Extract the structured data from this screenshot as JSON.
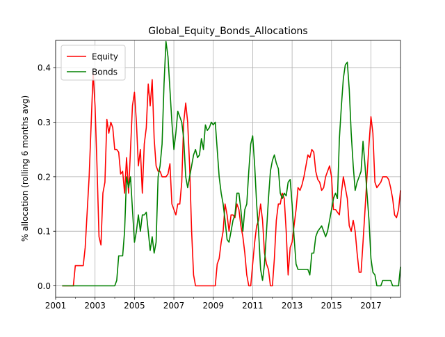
{
  "chart_data": {
    "type": "line",
    "title": "Global_Equity_Bonds_Allocations",
    "xlabel": "",
    "ylabel": "% allocation (rolling 6 months avg)",
    "xlim": [
      2001.0,
      2018.5
    ],
    "ylim": [
      -0.021,
      0.45
    ],
    "xticks": [
      2001,
      2003,
      2005,
      2007,
      2009,
      2011,
      2013,
      2015,
      2017
    ],
    "xtick_labels": [
      "2001",
      "2003",
      "2005",
      "2007",
      "2009",
      "2011",
      "2013",
      "2015",
      "2017"
    ],
    "yticks": [
      0.0,
      0.1,
      0.2,
      0.3,
      0.4
    ],
    "ytick_labels": [
      "0.0",
      "0.1",
      "0.2",
      "0.3",
      "0.4"
    ],
    "grid": true,
    "legend_position": "upper-left",
    "series": [
      {
        "name": "Equity",
        "color": "#ff0000",
        "x": [
          2001.33,
          2001.9,
          2002.0,
          2002.3,
          2002.4,
          2002.5,
          2002.7,
          2002.9,
          2003.0,
          2003.1,
          2003.2,
          2003.3,
          2003.4,
          2003.5,
          2003.6,
          2003.7,
          2003.8,
          2003.9,
          2004.0,
          2004.1,
          2004.2,
          2004.3,
          2004.4,
          2004.5,
          2004.6,
          2004.7,
          2004.8,
          2004.9,
          2005.0,
          2005.1,
          2005.2,
          2005.3,
          2005.4,
          2005.5,
          2005.6,
          2005.7,
          2005.8,
          2005.9,
          2006.0,
          2006.1,
          2006.2,
          2006.3,
          2006.4,
          2006.5,
          2006.6,
          2006.7,
          2006.8,
          2006.9,
          2007.0,
          2007.1,
          2007.2,
          2007.3,
          2007.4,
          2007.5,
          2007.6,
          2007.7,
          2007.8,
          2007.9,
          2008.0,
          2008.1,
          2008.2,
          2008.3,
          2008.5,
          2008.8,
          2009.1,
          2009.2,
          2009.3,
          2009.4,
          2009.5,
          2009.6,
          2009.7,
          2009.8,
          2009.9,
          2010.0,
          2010.1,
          2010.2,
          2010.3,
          2010.4,
          2010.5,
          2010.6,
          2010.7,
          2010.8,
          2010.9,
          2011.0,
          2011.1,
          2011.2,
          2011.3,
          2011.4,
          2011.5,
          2011.6,
          2011.7,
          2011.8,
          2011.9,
          2012.0,
          2012.1,
          2012.2,
          2012.3,
          2012.4,
          2012.5,
          2012.6,
          2012.7,
          2012.8,
          2012.9,
          2013.0,
          2013.1,
          2013.2,
          2013.3,
          2013.4,
          2013.5,
          2013.6,
          2013.7,
          2013.8,
          2013.9,
          2014.0,
          2014.1,
          2014.2,
          2014.3,
          2014.4,
          2014.5,
          2014.6,
          2014.7,
          2014.8,
          2014.9,
          2015.0,
          2015.1,
          2015.2,
          2015.3,
          2015.4,
          2015.5,
          2015.6,
          2015.7,
          2015.8,
          2015.9,
          2016.0,
          2016.1,
          2016.2,
          2016.3,
          2016.4,
          2016.5,
          2016.6,
          2016.7,
          2016.8,
          2016.9,
          2017.0,
          2017.1,
          2017.2,
          2017.3,
          2017.4,
          2017.5,
          2017.6,
          2017.7,
          2017.8,
          2017.9,
          2018.0,
          2018.1,
          2018.2,
          2018.3,
          2018.4,
          2018.5
        ],
        "y": [
          0.0,
          0.0,
          0.037,
          0.037,
          0.037,
          0.07,
          0.2,
          0.39,
          0.33,
          0.22,
          0.09,
          0.075,
          0.17,
          0.19,
          0.305,
          0.28,
          0.3,
          0.29,
          0.25,
          0.25,
          0.245,
          0.205,
          0.21,
          0.17,
          0.235,
          0.17,
          0.25,
          0.33,
          0.355,
          0.3,
          0.22,
          0.25,
          0.17,
          0.26,
          0.29,
          0.37,
          0.33,
          0.378,
          0.27,
          0.22,
          0.21,
          0.21,
          0.2,
          0.2,
          0.2,
          0.205,
          0.224,
          0.15,
          0.14,
          0.13,
          0.15,
          0.15,
          0.19,
          0.3,
          0.335,
          0.3,
          0.22,
          0.1,
          0.02,
          0.0,
          0.0,
          0.0,
          0.0,
          0.0,
          0.0,
          0.04,
          0.05,
          0.08,
          0.1,
          0.15,
          0.13,
          0.1,
          0.13,
          0.13,
          0.125,
          0.15,
          0.14,
          0.11,
          0.09,
          0.06,
          0.02,
          0.0,
          0.0,
          0.04,
          0.08,
          0.11,
          0.12,
          0.15,
          0.12,
          0.06,
          0.04,
          0.03,
          0.0,
          0.0,
          0.05,
          0.12,
          0.15,
          0.15,
          0.17,
          0.16,
          0.1,
          0.02,
          0.07,
          0.08,
          0.11,
          0.14,
          0.18,
          0.175,
          0.185,
          0.2,
          0.22,
          0.24,
          0.235,
          0.25,
          0.245,
          0.21,
          0.195,
          0.19,
          0.175,
          0.18,
          0.2,
          0.21,
          0.22,
          0.2,
          0.14,
          0.14,
          0.135,
          0.13,
          0.17,
          0.2,
          0.18,
          0.16,
          0.11,
          0.1,
          0.12,
          0.1,
          0.06,
          0.025,
          0.025,
          0.08,
          0.14,
          0.2,
          0.26,
          0.31,
          0.28,
          0.19,
          0.18,
          0.185,
          0.19,
          0.2,
          0.2,
          0.2,
          0.195,
          0.18,
          0.16,
          0.13,
          0.125,
          0.14,
          0.175
        ]
      },
      {
        "name": "Bonds",
        "color": "#008000",
        "x": [
          2001.33,
          2004.0,
          2004.1,
          2004.2,
          2004.3,
          2004.4,
          2004.5,
          2004.6,
          2004.7,
          2004.8,
          2004.9,
          2005.0,
          2005.1,
          2005.2,
          2005.3,
          2005.4,
          2005.5,
          2005.6,
          2005.7,
          2005.8,
          2005.9,
          2006.0,
          2006.1,
          2006.2,
          2006.3,
          2006.4,
          2006.5,
          2006.6,
          2006.7,
          2006.8,
          2006.9,
          2007.0,
          2007.1,
          2007.2,
          2007.3,
          2007.4,
          2007.5,
          2007.6,
          2007.7,
          2007.8,
          2007.9,
          2008.0,
          2008.1,
          2008.2,
          2008.3,
          2008.4,
          2008.5,
          2008.6,
          2008.7,
          2008.8,
          2008.9,
          2009.0,
          2009.1,
          2009.2,
          2009.3,
          2009.4,
          2009.5,
          2009.6,
          2009.7,
          2009.8,
          2009.9,
          2010.0,
          2010.1,
          2010.2,
          2010.3,
          2010.4,
          2010.5,
          2010.6,
          2010.7,
          2010.8,
          2010.9,
          2011.0,
          2011.1,
          2011.2,
          2011.3,
          2011.4,
          2011.5,
          2011.6,
          2011.7,
          2011.8,
          2011.9,
          2012.0,
          2012.1,
          2012.2,
          2012.3,
          2012.4,
          2012.5,
          2012.6,
          2012.7,
          2012.8,
          2012.9,
          2013.0,
          2013.1,
          2013.2,
          2013.3,
          2013.4,
          2013.5,
          2013.6,
          2013.7,
          2013.8,
          2013.9,
          2014.0,
          2014.1,
          2014.2,
          2014.3,
          2014.4,
          2014.5,
          2014.6,
          2014.7,
          2014.8,
          2014.9,
          2015.0,
          2015.1,
          2015.2,
          2015.3,
          2015.4,
          2015.5,
          2015.6,
          2015.7,
          2015.8,
          2015.9,
          2016.0,
          2016.1,
          2016.2,
          2016.3,
          2016.4,
          2016.5,
          2016.6,
          2016.7,
          2016.8,
          2016.9,
          2017.0,
          2017.1,
          2017.2,
          2017.3,
          2017.4,
          2017.5,
          2017.6,
          2017.7,
          2017.8,
          2017.9,
          2018.0,
          2018.1,
          2018.2,
          2018.3,
          2018.4,
          2018.5
        ],
        "y": [
          0.0,
          0.0,
          0.01,
          0.055,
          0.055,
          0.055,
          0.1,
          0.2,
          0.18,
          0.2,
          0.14,
          0.08,
          0.1,
          0.13,
          0.1,
          0.13,
          0.13,
          0.135,
          0.1,
          0.065,
          0.09,
          0.06,
          0.08,
          0.2,
          0.22,
          0.26,
          0.37,
          0.448,
          0.42,
          0.36,
          0.3,
          0.25,
          0.28,
          0.32,
          0.31,
          0.3,
          0.27,
          0.2,
          0.18,
          0.2,
          0.22,
          0.24,
          0.25,
          0.235,
          0.24,
          0.27,
          0.25,
          0.295,
          0.285,
          0.29,
          0.3,
          0.295,
          0.3,
          0.25,
          0.2,
          0.17,
          0.15,
          0.12,
          0.085,
          0.08,
          0.1,
          0.12,
          0.13,
          0.17,
          0.17,
          0.14,
          0.1,
          0.14,
          0.15,
          0.21,
          0.26,
          0.275,
          0.22,
          0.15,
          0.1,
          0.03,
          0.01,
          0.04,
          0.1,
          0.16,
          0.21,
          0.23,
          0.24,
          0.225,
          0.215,
          0.17,
          0.16,
          0.17,
          0.165,
          0.19,
          0.195,
          0.15,
          0.09,
          0.04,
          0.03,
          0.03,
          0.03,
          0.03,
          0.03,
          0.03,
          0.02,
          0.06,
          0.06,
          0.09,
          0.1,
          0.105,
          0.11,
          0.1,
          0.09,
          0.1,
          0.12,
          0.14,
          0.16,
          0.17,
          0.16,
          0.27,
          0.33,
          0.38,
          0.405,
          0.41,
          0.36,
          0.28,
          0.22,
          0.175,
          0.19,
          0.2,
          0.21,
          0.265,
          0.22,
          0.17,
          0.12,
          0.05,
          0.025,
          0.02,
          0.0,
          0.0,
          0.0,
          0.01,
          0.01,
          0.01,
          0.01,
          0.01,
          0.0,
          0.0,
          0.0,
          0.0,
          0.035
        ]
      }
    ]
  }
}
